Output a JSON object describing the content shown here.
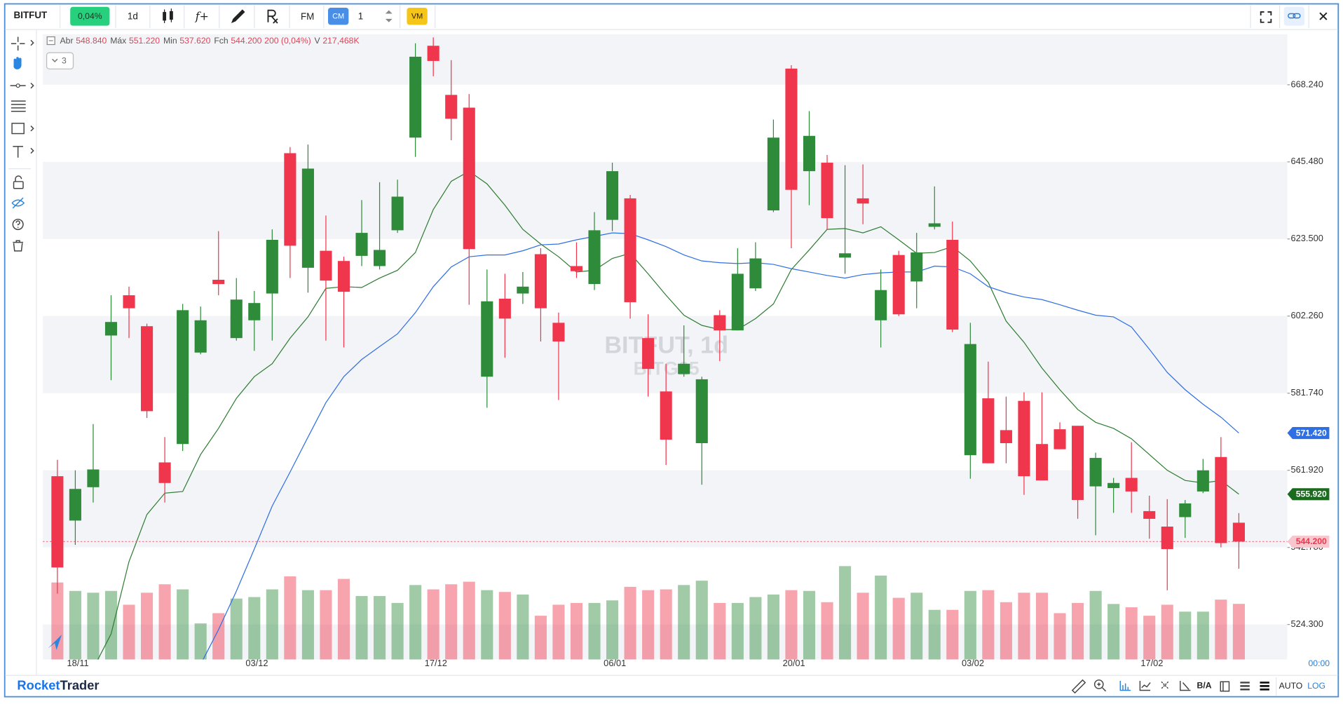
{
  "toolbar": {
    "symbol": "BITFUT",
    "change": "0,04%",
    "interval": "1d",
    "function": "f+",
    "fm": "FM",
    "cm": "CM",
    "quantity": "1",
    "vm": "VM"
  },
  "footer": {
    "brand_first": "Rocket",
    "brand_second": "Trader",
    "ba": "B/A",
    "auto": "AUTO",
    "log": "LOG"
  },
  "chart_data": {
    "type": "candlestick",
    "watermark": "BITFUT, 1d",
    "watermark_sub": "BITG25",
    "time_label": "00:00",
    "indicator_count": "3",
    "info": {
      "open_label": "Abr",
      "open": "548.840",
      "high_label": "Máx",
      "high": "551.220",
      "low_label": "Min",
      "low": "537.620",
      "close_label": "Fch",
      "close": "544.200",
      "change": "200 (0,04%)",
      "volume_label": "V",
      "volume": "217,468K"
    },
    "log_scale": true,
    "bands": true,
    "up_color": "#2e8b3a",
    "down_color": "#f0364c",
    "ylim": [
      516.12,
      683.59
    ],
    "yticks": [
      {
        "value": 668.24,
        "label": "668.240"
      },
      {
        "value": 645.48,
        "label": "645.480"
      },
      {
        "value": 623.5,
        "label": "623.500"
      },
      {
        "value": 602.26,
        "label": "602.260"
      },
      {
        "value": 581.74,
        "label": "581.740"
      },
      {
        "value": 561.92,
        "label": "561.920"
      },
      {
        "value": 542.78,
        "label": "542.780"
      },
      {
        "value": 524.3,
        "label": "524.300"
      }
    ],
    "categories": [
      null,
      "18/11",
      null,
      null,
      null,
      null,
      null,
      null,
      null,
      null,
      null,
      "03/12",
      null,
      null,
      null,
      null,
      null,
      null,
      null,
      null,
      null,
      "17/12",
      null,
      null,
      null,
      null,
      null,
      null,
      null,
      null,
      null,
      "06/01",
      null,
      null,
      null,
      null,
      null,
      null,
      null,
      null,
      null,
      "20/01",
      null,
      null,
      null,
      null,
      null,
      null,
      null,
      null,
      null,
      "03/02",
      null,
      null,
      null,
      null,
      null,
      null,
      null,
      null,
      null,
      "17/02",
      null,
      null,
      null,
      null,
      null
    ],
    "open": [
      560.43,
      549.37,
      557.67,
      597.02,
      607.92,
      599.52,
      563.92,
      568.6,
      592.46,
      612.17,
      596.33,
      601.12,
      608.4,
      648.01,
      615.48,
      620.2,
      617.36,
      618.78,
      615.95,
      625.94,
      652.56,
      680.06,
      665.21,
      661.41,
      586.07,
      606.98,
      608.4,
      619.25,
      600.44,
      615.95,
      610.99,
      628.87,
      634.98,
      596.33,
      582.2,
      586.76,
      568.82,
      602.5,
      598.39,
      609.81,
      631.56,
      673.12,
      642.79,
      645.24,
      618.3,
      634.98,
      601.12,
      619.02,
      611.7,
      626.92,
      623.26,
      565.75,
      580.4,
      572.16,
      579.74,
      568.6,
      572.39,
      573.28,
      557.88,
      557.45,
      560.01,
      551.71,
      547.88,
      550.22,
      556.6,
      565.29,
      548.84
    ],
    "high": [
      564.59,
      561.92,
      573.72,
      607.92,
      610.28,
      600.21,
      570.38,
      605.56,
      604.85,
      625.7,
      612.64,
      609.1,
      626.19,
      649.78,
      650.53,
      630.1,
      618.54,
      634.49,
      639.62,
      640.35,
      680.83,
      682.63,
      675.69,
      665.46,
      615.0,
      613.82,
      614.3,
      620.9,
      603.2,
      622.56,
      631.07,
      645.24,
      635.96,
      602.73,
      589.49,
      599.75,
      586.07,
      603.86,
      620.9,
      622.56,
      657.87,
      674.15,
      660.4,
      647.5,
      644.5,
      644.75,
      615.0,
      620.2,
      625.21,
      638.4,
      628.38,
      600.44,
      590.05,
      580.85,
      581.97,
      581.97,
      574.17,
      573.28,
      566.38,
      560.01,
      569.05,
      555.54,
      554.69,
      554.48,
      564.81,
      570.38,
      551.22
    ],
    "low": [
      531.61,
      543.41,
      553.84,
      585.16,
      596.33,
      575.28,
      553.84,
      566.82,
      592.0,
      607.92,
      595.65,
      592.92,
      595.65,
      612.64,
      608.63,
      595.65,
      593.82,
      615.95,
      615.0,
      625.21,
      646.94,
      670.81,
      651.8,
      605.33,
      577.95,
      591.09,
      605.56,
      595.42,
      579.96,
      612.64,
      609.34,
      625.7,
      601.58,
      580.85,
      563.26,
      586.07,
      558.3,
      590.18,
      598.39,
      609.1,
      631.07,
      620.9,
      633.03,
      626.19,
      613.82,
      627.64,
      593.82,
      602.26,
      604.38,
      626.19,
      597.93,
      559.79,
      563.7,
      563.7,
      555.75,
      559.37,
      567.27,
      549.8,
      545.75,
      551.28,
      551.28,
      544.9,
      532.42,
      545.11,
      556.18,
      542.78,
      537.62
    ],
    "close": [
      537.91,
      557.24,
      562.14,
      600.66,
      604.38,
      577.06,
      558.73,
      603.86,
      601.12,
      610.99,
      606.74,
      605.8,
      623.26,
      621.61,
      643.53,
      611.94,
      608.87,
      625.21,
      620.43,
      635.47,
      676.72,
      675.44,
      658.12,
      620.67,
      606.27,
      601.58,
      610.28,
      604.38,
      595.42,
      614.53,
      625.94,
      642.79,
      606.03,
      588.12,
      569.72,
      589.49,
      585.39,
      598.39,
      613.82,
      618.07,
      652.56,
      637.42,
      653.07,
      629.36,
      619.49,
      633.51,
      609.34,
      602.73,
      619.73,
      627.9,
      598.61,
      594.74,
      563.7,
      568.82,
      560.43,
      559.37,
      567.27,
      554.48,
      565.06,
      558.73,
      556.6,
      549.8,
      542.37,
      553.62,
      561.92,
      543.84,
      544.2
    ],
    "close_label": "544.200",
    "volume": [
      301000,
      268000,
      261000,
      268000,
      214000,
      261000,
      294000,
      274000,
      141000,
      181000,
      238000,
      244000,
      274000,
      325000,
      271000,
      271000,
      315000,
      248000,
      248000,
      221000,
      291000,
      274000,
      294000,
      304000,
      271000,
      264000,
      254000,
      171000,
      214000,
      221000,
      221000,
      231000,
      284000,
      271000,
      274000,
      291000,
      308000,
      221000,
      221000,
      244000,
      254000,
      271000,
      268000,
      224000,
      365000,
      261000,
      328000,
      241000,
      261000,
      194000,
      194000,
      268000,
      271000,
      224000,
      261000,
      261000,
      181000,
      221000,
      268000,
      217000,
      204000,
      171000,
      214000,
      187000,
      187000,
      234000,
      217468
    ],
    "overlays": [
      {
        "color": "#2e7d32",
        "label_color": "#1b6b1f",
        "last_label": "555.920",
        "values": [
          null,
          null,
          514.0,
          522.07,
          539.33,
          550.86,
          556.18,
          556.6,
          565.93,
          572.61,
          580.4,
          586.07,
          589.49,
          596.33,
          602.03,
          609.81,
          610.28,
          610.05,
          612.64,
          614.77,
          619.73,
          631.81,
          639.86,
          642.79,
          639.13,
          633.03,
          626.19,
          622.08,
          618.54,
          614.3,
          614.77,
          618.07,
          619.49,
          613.82,
          607.92,
          602.5,
          599.75,
          598.61,
          598.61,
          601.58,
          605.56,
          615.0,
          620.43,
          626.19,
          626.43,
          625.21,
          626.92,
          623.26,
          619.49,
          619.73,
          621.38,
          617.36,
          611.46,
          600.89,
          595.19,
          588.35,
          582.65,
          577.51,
          574.17,
          572.61,
          569.94,
          565.93,
          561.92,
          559.37,
          558.73,
          559.37,
          555.92
        ]
      },
      {
        "color": "#2f6fe4",
        "label_color": "#2f6fe4",
        "last_label": "571.420",
        "values": [
          null,
          null,
          null,
          null,
          null,
          null,
          null,
          null,
          514.96,
          523.08,
          532.22,
          542.37,
          552.99,
          561.49,
          570.38,
          579.29,
          586.07,
          590.63,
          594.05,
          597.47,
          603.2,
          610.28,
          615.71,
          618.54,
          619.02,
          619.02,
          620.2,
          621.85,
          622.08,
          623.26,
          624.23,
          625.21,
          624.96,
          623.26,
          621.38,
          619.02,
          617.36,
          616.89,
          616.66,
          616.89,
          616.42,
          615.24,
          614.3,
          613.35,
          612.64,
          613.59,
          614.06,
          614.3,
          614.3,
          615.95,
          615.71,
          613.82,
          610.28,
          608.63,
          607.45,
          606.74,
          605.33,
          603.86,
          602.5,
          602.03,
          599.3,
          593.37,
          587.21,
          582.65,
          578.85,
          575.5,
          571.42
        ]
      }
    ]
  }
}
